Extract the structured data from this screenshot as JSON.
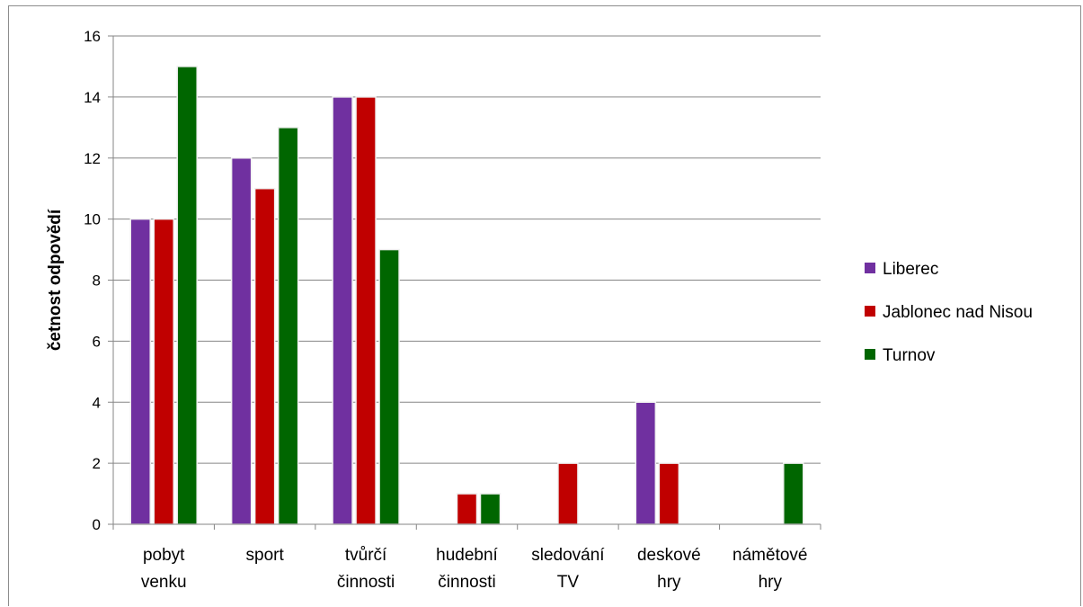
{
  "chart_data": {
    "type": "bar",
    "title": "",
    "xlabel": "",
    "ylabel": "četnost odpovědí",
    "ylim": [
      0,
      16
    ],
    "yticks": [
      0,
      2,
      4,
      6,
      8,
      10,
      12,
      14,
      16
    ],
    "grid": true,
    "legend_position": "right",
    "categories": [
      [
        "pobyt",
        "venku"
      ],
      [
        "sport"
      ],
      [
        "tvůrčí",
        "činnosti"
      ],
      [
        "hudební",
        "činnosti"
      ],
      [
        "sledování",
        "TV"
      ],
      [
        "deskové",
        "hry"
      ],
      [
        "námětové",
        "hry"
      ]
    ],
    "series": [
      {
        "name": "Liberec",
        "color": "#7030a0",
        "values": [
          10,
          12,
          14,
          0,
          0,
          4,
          0
        ]
      },
      {
        "name": "Jablonec nad Nisou",
        "color": "#c00000",
        "values": [
          10,
          11,
          14,
          1,
          2,
          2,
          0
        ]
      },
      {
        "name": "Turnov",
        "color": "#006600",
        "values": [
          15,
          13,
          9,
          1,
          0,
          0,
          2
        ]
      }
    ]
  }
}
